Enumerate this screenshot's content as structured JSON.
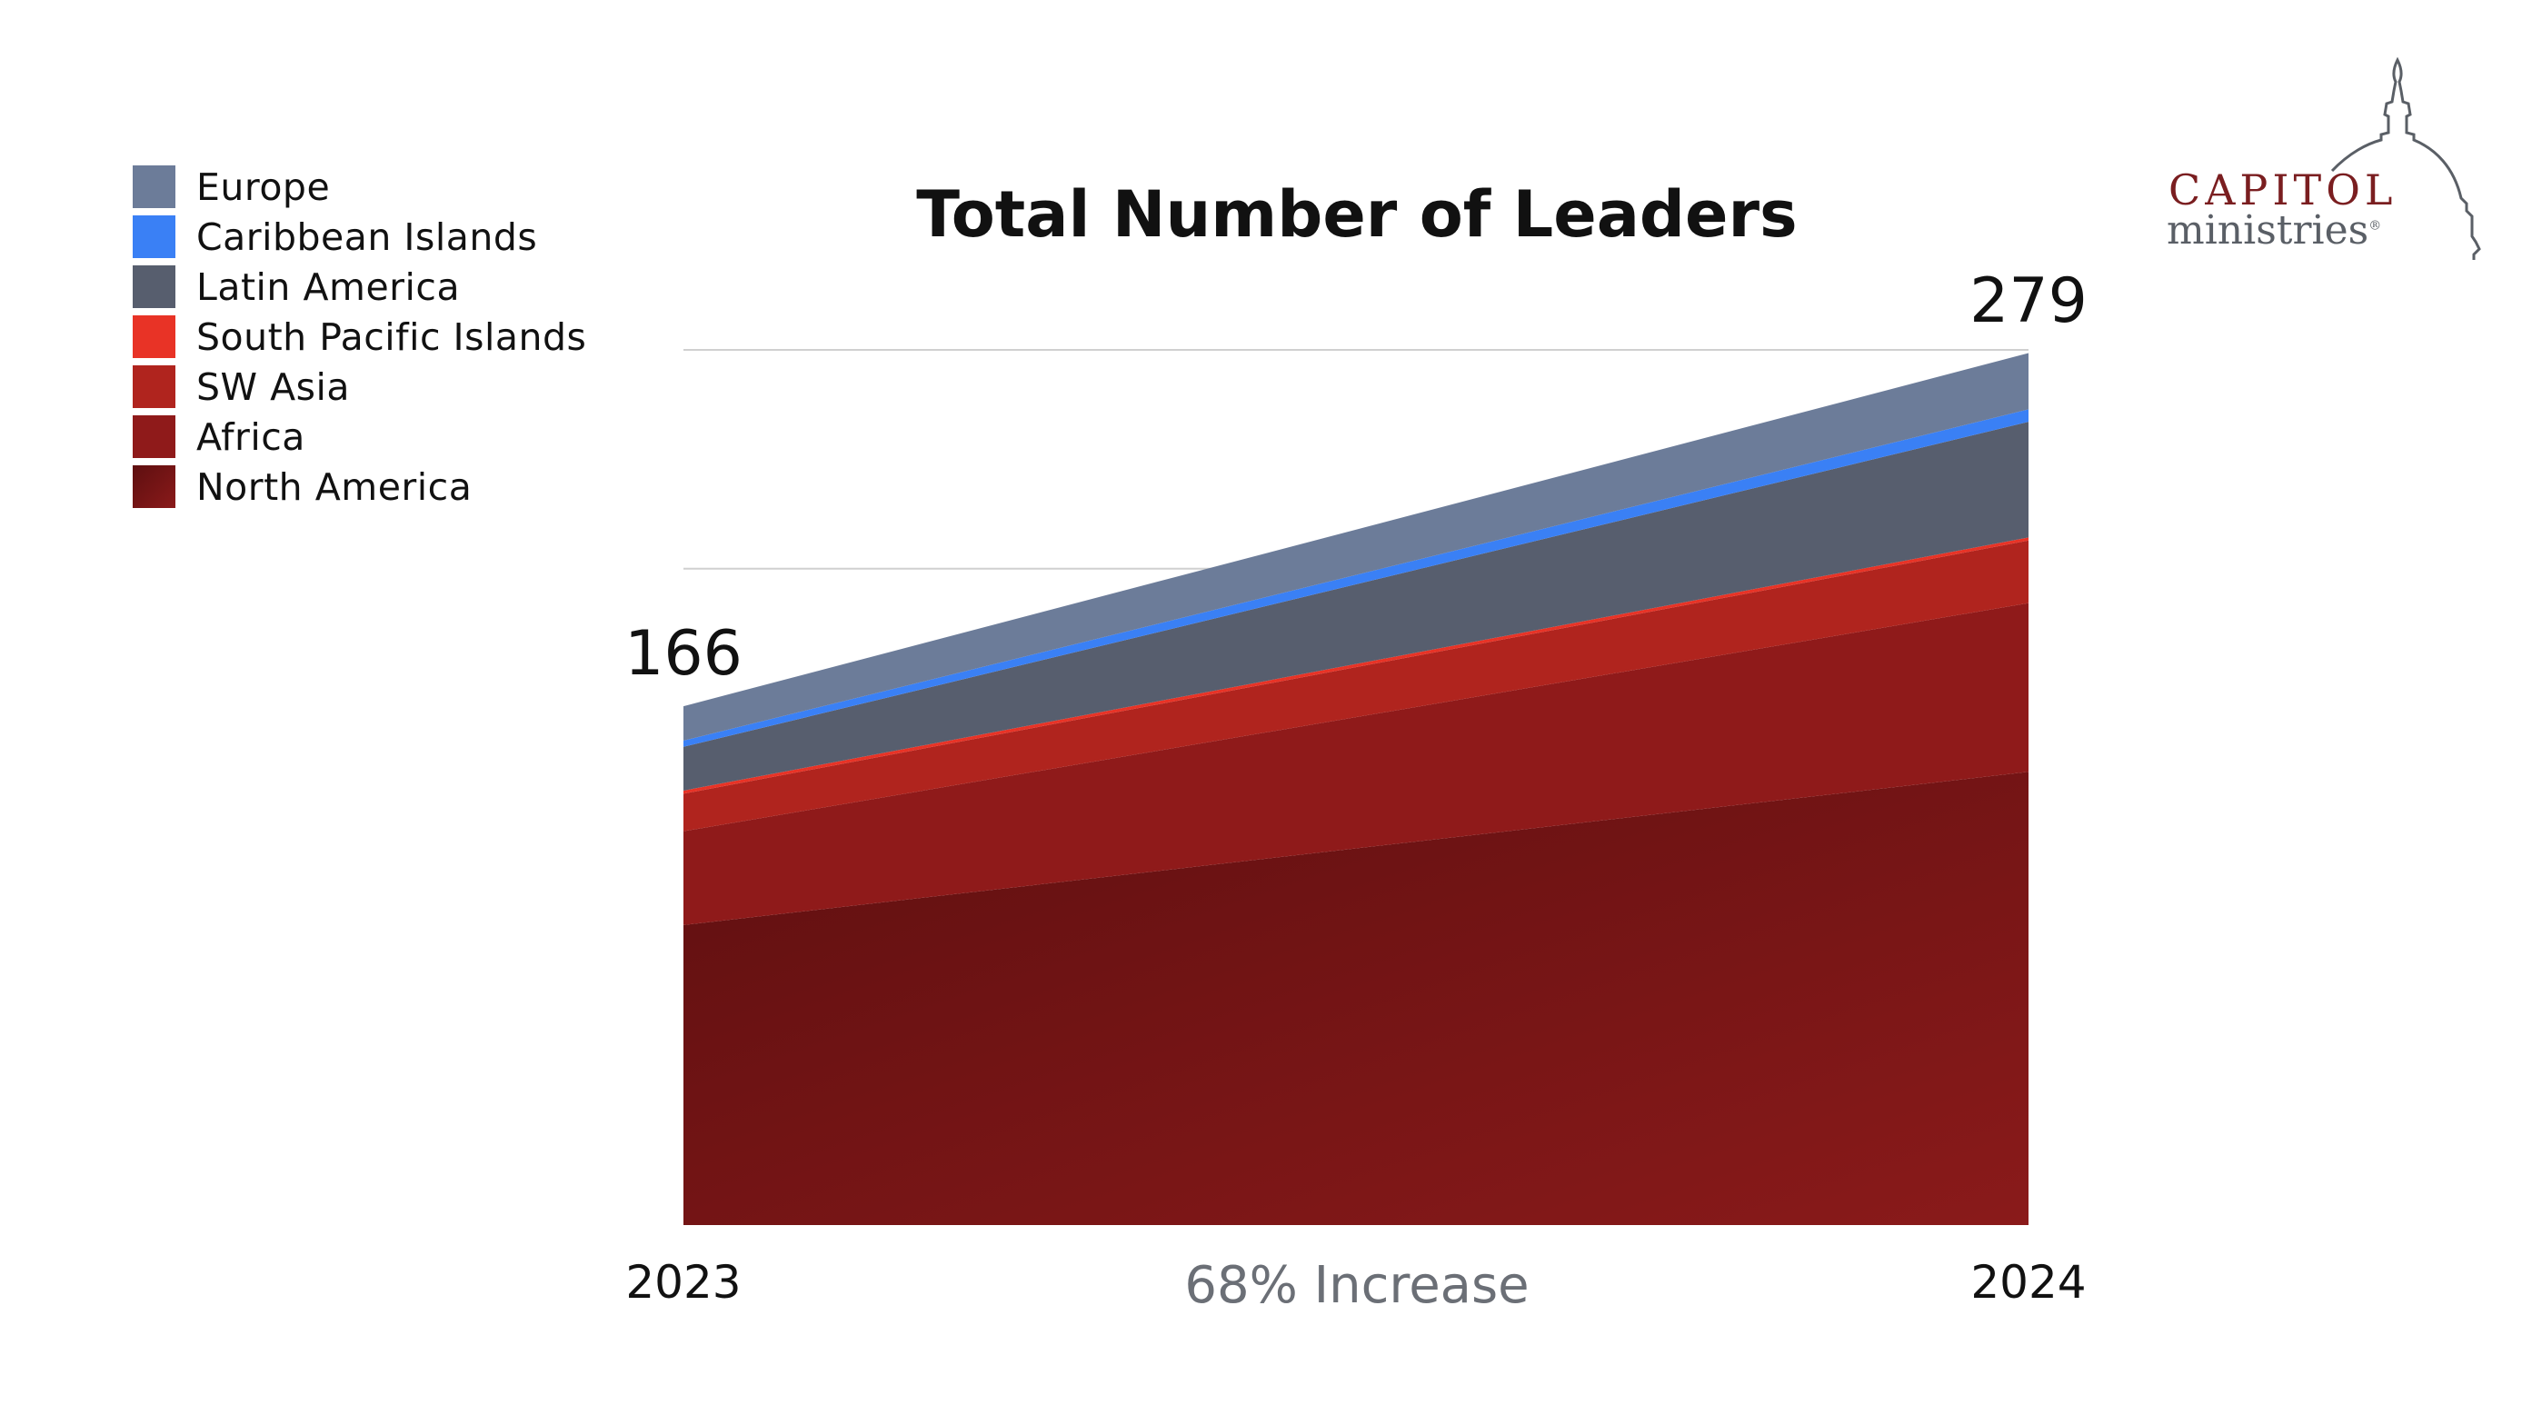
{
  "chart_data": {
    "type": "area",
    "stacked": true,
    "title": "Total Number of Leaders",
    "categories": [
      "2023",
      "2024"
    ],
    "ylim": [
      0,
      280
    ],
    "gridlines": [
      210,
      280
    ],
    "grid": true,
    "legend_position": "top-left",
    "series": [
      {
        "name": "North America",
        "values": [
          96,
          145
        ],
        "color": "#7a1416"
      },
      {
        "name": "Africa",
        "values": [
          30,
          54
        ],
        "color": "#8f1a1a"
      },
      {
        "name": "SW Asia",
        "values": [
          12,
          20
        ],
        "color": "#b0241e"
      },
      {
        "name": "South Pacific Islands",
        "values": [
          1,
          1
        ],
        "color": "#e83326"
      },
      {
        "name": "Latin America",
        "values": [
          14,
          37
        ],
        "color": "#575e6e"
      },
      {
        "name": "Caribbean Islands",
        "values": [
          2,
          4
        ],
        "color": "#3a80f5"
      },
      {
        "name": "Europe",
        "values": [
          11,
          18
        ],
        "color": "#6c7c99"
      }
    ],
    "totals": {
      "start": "166",
      "end": "279"
    },
    "annotation": "68% Increase"
  },
  "legend": [
    {
      "label": "Europe",
      "color": "#6c7c99"
    },
    {
      "label": "Caribbean Islands",
      "color": "#3a80f5"
    },
    {
      "label": "Latin America",
      "color": "#575e6e"
    },
    {
      "label": "South Pacific Islands",
      "color": "#e83326"
    },
    {
      "label": "SW Asia",
      "color": "#b0241e"
    },
    {
      "label": "Africa",
      "color": "#8f1a1a"
    },
    {
      "label": "North America",
      "color": "#6a1012"
    }
  ],
  "logo": {
    "line1": "CAPITOL",
    "line2": "ministries",
    "registered": "®"
  }
}
